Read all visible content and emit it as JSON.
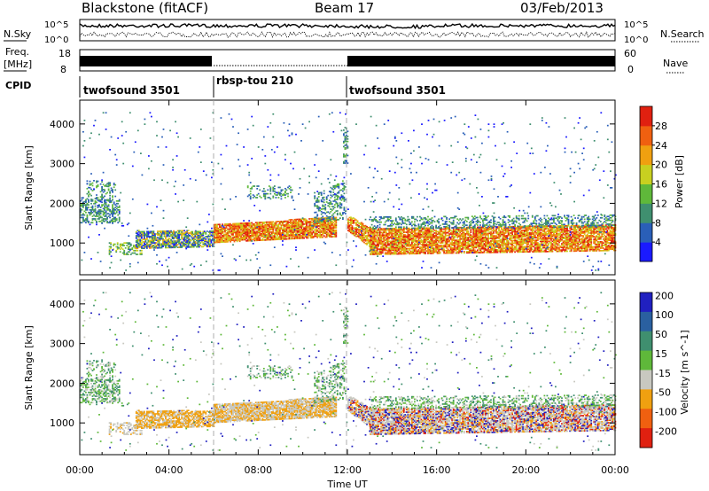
{
  "header": {
    "station": "Blackstone (fitACF)",
    "beam": "Beam 17",
    "date": "03/Feb/2013"
  },
  "strips": {
    "nsky_label": "N.Sky",
    "nsearch_label": "N.Search",
    "freq_label_1": "Freq.",
    "freq_label_2": "[MHz]",
    "nave_label": "Nave",
    "cpid_label": "CPID",
    "noise_ticks": [
      "10^5",
      "10^0"
    ],
    "freq_ticks": [
      "18",
      "8"
    ],
    "nave_ticks": [
      "60",
      "0"
    ]
  },
  "cpid": [
    {
      "name": "twofsound 3501",
      "start_h": 0,
      "end_h": 6
    },
    {
      "name": "rbsp-tou 210",
      "start_h": 6,
      "end_h": 12
    },
    {
      "name": "twofsound 3501",
      "start_h": 12,
      "end_h": 24
    }
  ],
  "axes": {
    "xlabel": "Time UT",
    "x_ticks": [
      "00:00",
      "04:00",
      "08:00",
      "12:00",
      "16:00",
      "20:00",
      "00:00"
    ],
    "ylabel": "Slant Range [km]",
    "y_ticks": [
      "1000",
      "2000",
      "3000",
      "4000"
    ]
  },
  "chart_data": [
    {
      "type": "heatmap",
      "title": "",
      "xlabel": "",
      "ylabel": "Slant Range [km]",
      "xlim": [
        0,
        24
      ],
      "ylim": [
        200,
        4600
      ],
      "colorbar": {
        "label": "Power [dB]",
        "ticks": [
          "4",
          "8",
          "12",
          "16",
          "20",
          "24",
          "28"
        ],
        "colors": [
          "#1a1aff",
          "#2a5fb8",
          "#3f8f6f",
          "#5fb83a",
          "#c8d020",
          "#f0a010",
          "#f06010",
          "#e02010"
        ]
      }
    },
    {
      "type": "heatmap",
      "title": "",
      "xlabel": "Time UT",
      "ylabel": "Slant Range [km]",
      "xlim": [
        0,
        24
      ],
      "ylim": [
        200,
        4600
      ],
      "colorbar": {
        "label": "Velocity [m s^-1]",
        "ticks": [
          "200",
          "100",
          "50",
          "15",
          "-15",
          "-50",
          "-100",
          "-200"
        ],
        "colors": [
          "#2020c0",
          "#2a60a0",
          "#3f8f6f",
          "#5fb83a",
          "#c8c8c0",
          "#f0a010",
          "#f06010",
          "#e02010"
        ]
      }
    }
  ]
}
